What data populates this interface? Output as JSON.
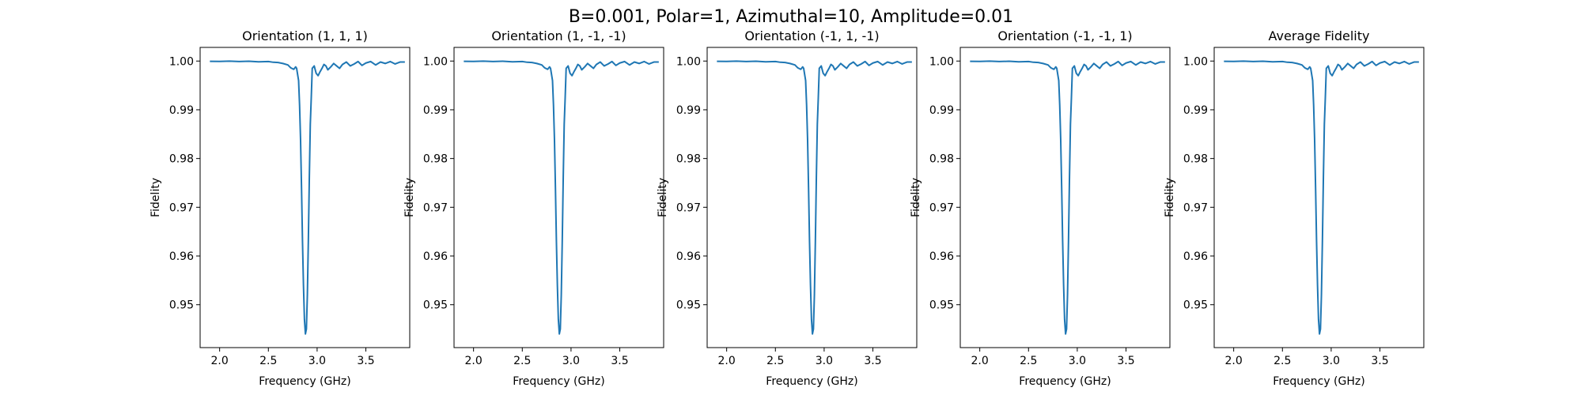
{
  "figure": {
    "suptitle": "B=0.001, Polar=1, Azimuthal=10, Amplitude=0.01"
  },
  "style": {
    "line_color": "#1f77b4",
    "background": "#ffffff",
    "axis_color": "#000000"
  },
  "chart_data": [
    {
      "type": "line",
      "title": "Orientation (1, 1, 1)",
      "xlabel": "Frequency (GHz)",
      "ylabel": "Fidelity",
      "xlim": [
        1.8,
        3.95
      ],
      "ylim": [
        0.9412,
        1.0028
      ],
      "xticks": [
        "2.0",
        "2.5",
        "3.0",
        "3.5"
      ],
      "yticks": [
        "0.95",
        "0.96",
        "0.97",
        "0.98",
        "0.99",
        "1.00"
      ],
      "grid": false,
      "series": [
        {
          "x": [
            1.9,
            2.0,
            2.1,
            2.2,
            2.3,
            2.4,
            2.5,
            2.55,
            2.6,
            2.65,
            2.7,
            2.73,
            2.76,
            2.78,
            2.79,
            2.81,
            2.82,
            2.83,
            2.84,
            2.85,
            2.86,
            2.87,
            2.88,
            2.89,
            2.9,
            2.91,
            2.92,
            2.93,
            2.94,
            2.95,
            2.97,
            2.99,
            3.01,
            3.03,
            3.05,
            3.07,
            3.09,
            3.11,
            3.14,
            3.17,
            3.2,
            3.23,
            3.26,
            3.3,
            3.34,
            3.38,
            3.42,
            3.46,
            3.5,
            3.55,
            3.6,
            3.65,
            3.7,
            3.75,
            3.8,
            3.85,
            3.9
          ],
          "y": [
            0.99995,
            0.99993,
            0.99998,
            0.9999,
            0.99996,
            0.99985,
            0.9999,
            0.99975,
            0.9997,
            0.9995,
            0.9992,
            0.9986,
            0.9983,
            0.9988,
            0.9985,
            0.996,
            0.991,
            0.984,
            0.974,
            0.963,
            0.954,
            0.947,
            0.944,
            0.945,
            0.952,
            0.963,
            0.976,
            0.987,
            0.9925,
            0.9985,
            0.999,
            0.9975,
            0.997,
            0.9978,
            0.9985,
            0.9993,
            0.999,
            0.9982,
            0.9988,
            0.9995,
            0.999,
            0.9985,
            0.9993,
            0.9998,
            0.999,
            0.9994,
            0.9999,
            0.9991,
            0.9996,
            0.9999,
            0.9992,
            0.9998,
            0.9995,
            0.9999,
            0.9994,
            0.9998,
            0.9998
          ]
        }
      ]
    },
    {
      "type": "line",
      "title": "Orientation (1, -1, -1)",
      "xlabel": "Frequency (GHz)",
      "ylabel": "Fidelity",
      "xlim": [
        1.8,
        3.95
      ],
      "ylim": [
        0.9412,
        1.0028
      ],
      "xticks": [
        "2.0",
        "2.5",
        "3.0",
        "3.5"
      ],
      "yticks": [
        "0.95",
        "0.96",
        "0.97",
        "0.98",
        "0.99",
        "1.00"
      ],
      "grid": false,
      "series": [
        {
          "x": [
            1.9,
            2.0,
            2.1,
            2.2,
            2.3,
            2.4,
            2.5,
            2.55,
            2.6,
            2.65,
            2.7,
            2.73,
            2.76,
            2.78,
            2.79,
            2.81,
            2.82,
            2.83,
            2.84,
            2.85,
            2.86,
            2.87,
            2.88,
            2.89,
            2.9,
            2.91,
            2.92,
            2.93,
            2.94,
            2.95,
            2.97,
            2.99,
            3.01,
            3.03,
            3.05,
            3.07,
            3.09,
            3.11,
            3.14,
            3.17,
            3.2,
            3.23,
            3.26,
            3.3,
            3.34,
            3.38,
            3.42,
            3.46,
            3.5,
            3.55,
            3.6,
            3.65,
            3.7,
            3.75,
            3.8,
            3.85,
            3.9
          ],
          "y": [
            0.99995,
            0.99993,
            0.99998,
            0.9999,
            0.99996,
            0.99985,
            0.9999,
            0.99975,
            0.9997,
            0.9995,
            0.9992,
            0.9986,
            0.9983,
            0.9988,
            0.9985,
            0.996,
            0.991,
            0.984,
            0.974,
            0.963,
            0.954,
            0.947,
            0.944,
            0.945,
            0.952,
            0.963,
            0.976,
            0.987,
            0.9925,
            0.9985,
            0.999,
            0.9975,
            0.997,
            0.9978,
            0.9985,
            0.9993,
            0.999,
            0.9982,
            0.9988,
            0.9995,
            0.999,
            0.9985,
            0.9993,
            0.9998,
            0.999,
            0.9994,
            0.9999,
            0.9991,
            0.9996,
            0.9999,
            0.9992,
            0.9998,
            0.9995,
            0.9999,
            0.9994,
            0.9998,
            0.9998
          ]
        }
      ]
    },
    {
      "type": "line",
      "title": "Orientation (-1, 1, -1)",
      "xlabel": "Frequency (GHz)",
      "ylabel": "Fidelity",
      "xlim": [
        1.8,
        3.95
      ],
      "ylim": [
        0.9412,
        1.0028
      ],
      "xticks": [
        "2.0",
        "2.5",
        "3.0",
        "3.5"
      ],
      "yticks": [
        "0.95",
        "0.96",
        "0.97",
        "0.98",
        "0.99",
        "1.00"
      ],
      "grid": false,
      "series": [
        {
          "x": [
            1.9,
            2.0,
            2.1,
            2.2,
            2.3,
            2.4,
            2.5,
            2.55,
            2.6,
            2.65,
            2.7,
            2.73,
            2.76,
            2.78,
            2.79,
            2.81,
            2.82,
            2.83,
            2.84,
            2.85,
            2.86,
            2.87,
            2.88,
            2.89,
            2.9,
            2.91,
            2.92,
            2.93,
            2.94,
            2.95,
            2.97,
            2.99,
            3.01,
            3.03,
            3.05,
            3.07,
            3.09,
            3.11,
            3.14,
            3.17,
            3.2,
            3.23,
            3.26,
            3.3,
            3.34,
            3.38,
            3.42,
            3.46,
            3.5,
            3.55,
            3.6,
            3.65,
            3.7,
            3.75,
            3.8,
            3.85,
            3.9
          ],
          "y": [
            0.99995,
            0.99993,
            0.99998,
            0.9999,
            0.99996,
            0.99985,
            0.9999,
            0.99975,
            0.9997,
            0.9995,
            0.9992,
            0.9986,
            0.9983,
            0.9988,
            0.9985,
            0.996,
            0.991,
            0.984,
            0.974,
            0.963,
            0.954,
            0.947,
            0.944,
            0.945,
            0.952,
            0.963,
            0.976,
            0.987,
            0.9925,
            0.9985,
            0.999,
            0.9975,
            0.997,
            0.9978,
            0.9985,
            0.9993,
            0.999,
            0.9982,
            0.9988,
            0.9995,
            0.999,
            0.9985,
            0.9993,
            0.9998,
            0.999,
            0.9994,
            0.9999,
            0.9991,
            0.9996,
            0.9999,
            0.9992,
            0.9998,
            0.9995,
            0.9999,
            0.9994,
            0.9998,
            0.9998
          ]
        }
      ]
    },
    {
      "type": "line",
      "title": "Orientation (-1, -1, 1)",
      "xlabel": "Frequency (GHz)",
      "ylabel": "Fidelity",
      "xlim": [
        1.8,
        3.95
      ],
      "ylim": [
        0.9412,
        1.0028
      ],
      "xticks": [
        "2.0",
        "2.5",
        "3.0",
        "3.5"
      ],
      "yticks": [
        "0.95",
        "0.96",
        "0.97",
        "0.98",
        "0.99",
        "1.00"
      ],
      "grid": false,
      "series": [
        {
          "x": [
            1.9,
            2.0,
            2.1,
            2.2,
            2.3,
            2.4,
            2.5,
            2.55,
            2.6,
            2.65,
            2.7,
            2.73,
            2.76,
            2.78,
            2.79,
            2.81,
            2.82,
            2.83,
            2.84,
            2.85,
            2.86,
            2.87,
            2.88,
            2.89,
            2.9,
            2.91,
            2.92,
            2.93,
            2.94,
            2.95,
            2.97,
            2.99,
            3.01,
            3.03,
            3.05,
            3.07,
            3.09,
            3.11,
            3.14,
            3.17,
            3.2,
            3.23,
            3.26,
            3.3,
            3.34,
            3.38,
            3.42,
            3.46,
            3.5,
            3.55,
            3.6,
            3.65,
            3.7,
            3.75,
            3.8,
            3.85,
            3.9
          ],
          "y": [
            0.99995,
            0.99993,
            0.99998,
            0.9999,
            0.99996,
            0.99985,
            0.9999,
            0.99975,
            0.9997,
            0.9995,
            0.9992,
            0.9986,
            0.9983,
            0.9988,
            0.9985,
            0.996,
            0.991,
            0.984,
            0.974,
            0.963,
            0.954,
            0.947,
            0.944,
            0.945,
            0.952,
            0.963,
            0.976,
            0.987,
            0.9925,
            0.9985,
            0.999,
            0.9975,
            0.997,
            0.9978,
            0.9985,
            0.9993,
            0.999,
            0.9982,
            0.9988,
            0.9995,
            0.999,
            0.9985,
            0.9993,
            0.9998,
            0.999,
            0.9994,
            0.9999,
            0.9991,
            0.9996,
            0.9999,
            0.9992,
            0.9998,
            0.9995,
            0.9999,
            0.9994,
            0.9998,
            0.9998
          ]
        }
      ]
    },
    {
      "type": "line",
      "title": "Average Fidelity",
      "xlabel": "Frequency (GHz)",
      "ylabel": "Fidelity",
      "xlim": [
        1.8,
        3.95
      ],
      "ylim": [
        0.9412,
        1.0028
      ],
      "xticks": [
        "2.0",
        "2.5",
        "3.0",
        "3.5"
      ],
      "yticks": [
        "0.95",
        "0.96",
        "0.97",
        "0.98",
        "0.99",
        "1.00"
      ],
      "grid": false,
      "series": [
        {
          "x": [
            1.9,
            2.0,
            2.1,
            2.2,
            2.3,
            2.4,
            2.5,
            2.55,
            2.6,
            2.65,
            2.7,
            2.73,
            2.76,
            2.78,
            2.79,
            2.81,
            2.82,
            2.83,
            2.84,
            2.85,
            2.86,
            2.87,
            2.88,
            2.89,
            2.9,
            2.91,
            2.92,
            2.93,
            2.94,
            2.95,
            2.97,
            2.99,
            3.01,
            3.03,
            3.05,
            3.07,
            3.09,
            3.11,
            3.14,
            3.17,
            3.2,
            3.23,
            3.26,
            3.3,
            3.34,
            3.38,
            3.42,
            3.46,
            3.5,
            3.55,
            3.6,
            3.65,
            3.7,
            3.75,
            3.8,
            3.85,
            3.9
          ],
          "y": [
            0.99995,
            0.99993,
            0.99998,
            0.9999,
            0.99996,
            0.99985,
            0.9999,
            0.99975,
            0.9997,
            0.9995,
            0.9992,
            0.9986,
            0.9983,
            0.9988,
            0.9985,
            0.996,
            0.991,
            0.984,
            0.974,
            0.963,
            0.954,
            0.947,
            0.944,
            0.945,
            0.952,
            0.963,
            0.976,
            0.987,
            0.9925,
            0.9985,
            0.999,
            0.9975,
            0.997,
            0.9978,
            0.9985,
            0.9993,
            0.999,
            0.9982,
            0.9988,
            0.9995,
            0.999,
            0.9985,
            0.9993,
            0.9998,
            0.999,
            0.9994,
            0.9999,
            0.9991,
            0.9996,
            0.9999,
            0.9992,
            0.9998,
            0.9995,
            0.9999,
            0.9994,
            0.9998,
            0.9998
          ]
        }
      ]
    }
  ]
}
